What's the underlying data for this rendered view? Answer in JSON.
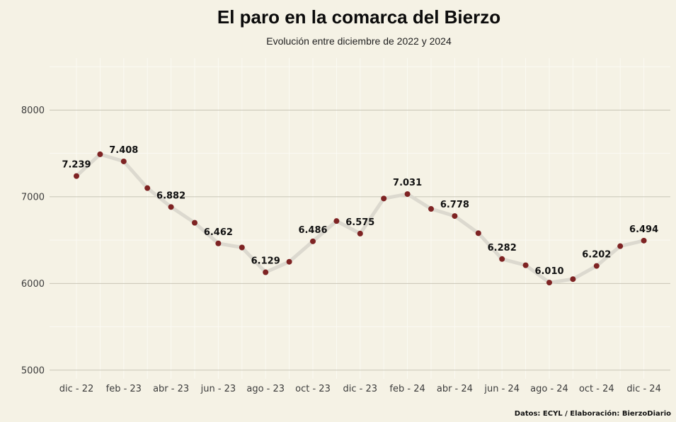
{
  "chart_data": {
    "type": "line",
    "title": "El paro en la comarca del Bierzo",
    "subtitle": "Evolución entre diciembre de 2022 y 2024",
    "source": "Datos: ECYL / Elaboración: BierzoDiario",
    "xlabel": "",
    "ylabel": "",
    "ylim": [
      4900,
      8600
    ],
    "yticks": [
      5000,
      6000,
      7000,
      8000
    ],
    "grid": true,
    "colors": {
      "background": "#f5f2e5",
      "line": "#dcd9cf",
      "marker": "#7e2323",
      "major_grid": "#c8c5b6",
      "minor_grid": "#fbfaf3"
    },
    "x": [
      "dic-22",
      "ene-23",
      "feb-23",
      "mar-23",
      "abr-23",
      "may-23",
      "jun-23",
      "jul-23",
      "ago-23",
      "sep-23",
      "oct-23",
      "nov-23",
      "dic-23",
      "ene-24",
      "feb-24",
      "mar-24",
      "abr-24",
      "may-24",
      "jun-24",
      "jul-24",
      "ago-24",
      "sep-24",
      "oct-24",
      "nov-24",
      "dic-24"
    ],
    "xtick_labels": [
      "dic - 22",
      "feb - 23",
      "abr - 23",
      "jun - 23",
      "ago - 23",
      "oct - 23",
      "dic - 23",
      "feb - 24",
      "abr - 24",
      "jun - 24",
      "ago - 24",
      "oct - 24",
      "dic - 24"
    ],
    "values": [
      7239,
      7490,
      7408,
      7100,
      6882,
      6700,
      6462,
      6415,
      6129,
      6250,
      6486,
      6720,
      6575,
      6980,
      7031,
      6860,
      6778,
      6580,
      6282,
      6210,
      6010,
      6050,
      6202,
      6430,
      6494
    ],
    "data_labels": [
      {
        "index": 0,
        "text": "7.239"
      },
      {
        "index": 2,
        "text": "7.408"
      },
      {
        "index": 4,
        "text": "6.882"
      },
      {
        "index": 6,
        "text": "6.462"
      },
      {
        "index": 8,
        "text": "6.129"
      },
      {
        "index": 10,
        "text": "6.486"
      },
      {
        "index": 12,
        "text": "6.575"
      },
      {
        "index": 14,
        "text": "7.031"
      },
      {
        "index": 16,
        "text": "6.778"
      },
      {
        "index": 18,
        "text": "6.282"
      },
      {
        "index": 20,
        "text": "6.010"
      },
      {
        "index": 22,
        "text": "6.202"
      },
      {
        "index": 24,
        "text": "6.494"
      }
    ]
  }
}
